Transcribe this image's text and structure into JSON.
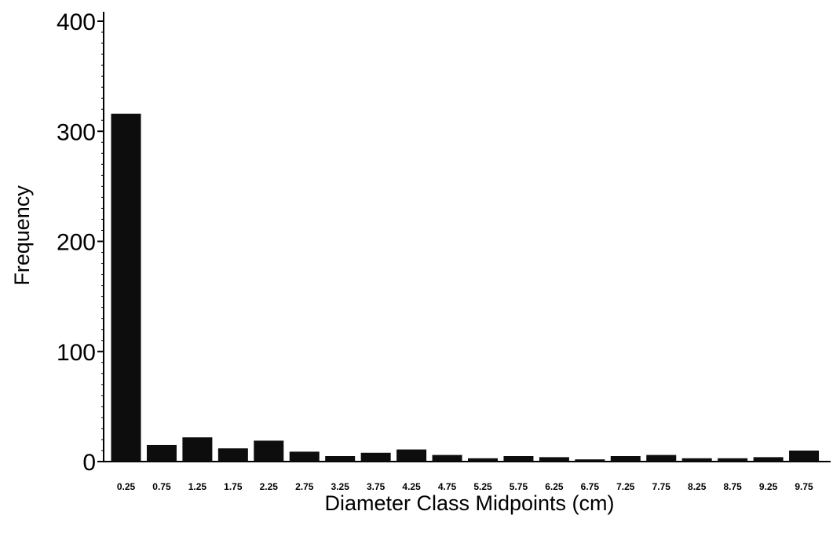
{
  "chart_data": {
    "type": "bar",
    "title": "",
    "xlabel": "Diameter Class Midpoints (cm)",
    "ylabel": "Frequency",
    "ylim": [
      0,
      400
    ],
    "yticks": [
      "0",
      "100",
      "200",
      "300",
      "400"
    ],
    "yminor_step": 10,
    "grid": false,
    "legend": "none",
    "bar_color": "#0d0d0d",
    "categories": [
      "0.25",
      "0.75",
      "1.25",
      "1.75",
      "2.25",
      "2.75",
      "3.25",
      "3.75",
      "4.25",
      "4.75",
      "5.25",
      "5.75",
      "6.25",
      "6.75",
      "7.25",
      "7.75",
      "8.25",
      "8.75",
      "9.25",
      "9.75"
    ],
    "values": [
      316,
      15,
      22,
      12,
      19,
      9,
      5,
      8,
      11,
      6,
      3,
      5,
      4,
      2,
      5,
      6,
      3,
      3,
      4,
      10
    ]
  }
}
